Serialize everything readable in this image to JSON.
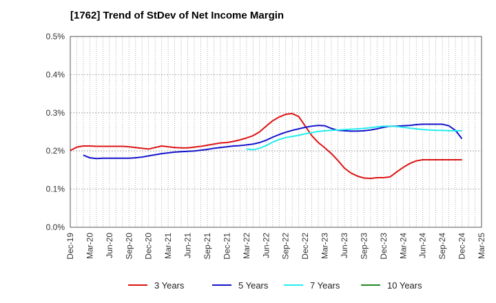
{
  "chart_data": {
    "type": "line",
    "title": "[1762]  Trend of StDev of Net Income Margin",
    "xlabel": "",
    "ylabel": "",
    "x_ticks": [
      "Dec-19",
      "Mar-20",
      "Jun-20",
      "Sep-20",
      "Dec-20",
      "Mar-21",
      "Jun-21",
      "Sep-21",
      "Dec-21",
      "Mar-22",
      "Jun-22",
      "Sep-22",
      "Dec-22",
      "Mar-23",
      "Jun-23",
      "Sep-23",
      "Dec-23",
      "Mar-24",
      "Jun-24",
      "Sep-24",
      "Dec-24",
      "Mar-25"
    ],
    "y_ticks": [
      "0.0%",
      "0.1%",
      "0.2%",
      "0.3%",
      "0.4%",
      "0.5%"
    ],
    "ylim": [
      0,
      0.5
    ],
    "grid": "dotted",
    "legend_position": "bottom",
    "series": [
      {
        "name": "3 Years",
        "color": "#dd1111",
        "x": [
          "2019-12",
          "2020-01",
          "2020-02",
          "2020-03",
          "2020-04",
          "2020-05",
          "2020-06",
          "2020-07",
          "2020-08",
          "2020-09",
          "2020-10",
          "2020-11",
          "2020-12",
          "2021-01",
          "2021-02",
          "2021-03",
          "2021-04",
          "2021-05",
          "2021-06",
          "2021-07",
          "2021-08",
          "2021-09",
          "2021-10",
          "2021-11",
          "2021-12",
          "2022-01",
          "2022-02",
          "2022-03",
          "2022-04",
          "2022-05",
          "2022-06",
          "2022-07",
          "2022-08",
          "2022-09",
          "2022-10",
          "2022-11",
          "2022-12",
          "2023-01",
          "2023-02",
          "2023-03",
          "2023-04",
          "2023-05",
          "2023-06",
          "2023-07",
          "2023-08",
          "2023-09",
          "2023-10",
          "2023-11",
          "2023-12",
          "2024-01",
          "2024-02",
          "2024-03",
          "2024-04",
          "2024-05",
          "2024-06",
          "2024-07",
          "2024-08",
          "2024-09",
          "2024-10",
          "2024-11",
          "2024-12"
        ],
        "values": [
          0.201,
          0.21,
          0.213,
          0.213,
          0.212,
          0.212,
          0.212,
          0.212,
          0.212,
          0.211,
          0.209,
          0.207,
          0.205,
          0.209,
          0.213,
          0.211,
          0.209,
          0.208,
          0.208,
          0.21,
          0.212,
          0.215,
          0.218,
          0.221,
          0.222,
          0.225,
          0.229,
          0.234,
          0.24,
          0.25,
          0.265,
          0.279,
          0.289,
          0.296,
          0.298,
          0.29,
          0.265,
          0.24,
          0.222,
          0.208,
          0.193,
          0.175,
          0.155,
          0.142,
          0.134,
          0.129,
          0.128,
          0.13,
          0.13,
          0.132,
          0.145,
          0.157,
          0.167,
          0.174,
          0.177,
          0.177,
          0.177,
          0.177,
          0.177,
          0.177,
          0.177
        ]
      },
      {
        "name": "5 Years",
        "color": "#1111cc",
        "x": [
          "2020-02",
          "2020-03",
          "2020-04",
          "2020-05",
          "2020-06",
          "2020-07",
          "2020-08",
          "2020-09",
          "2020-10",
          "2020-11",
          "2020-12",
          "2021-01",
          "2021-02",
          "2021-03",
          "2021-04",
          "2021-05",
          "2021-06",
          "2021-07",
          "2021-08",
          "2021-09",
          "2021-10",
          "2021-11",
          "2021-12",
          "2022-01",
          "2022-02",
          "2022-03",
          "2022-04",
          "2022-05",
          "2022-06",
          "2022-07",
          "2022-08",
          "2022-09",
          "2022-10",
          "2022-11",
          "2022-12",
          "2023-01",
          "2023-02",
          "2023-03",
          "2023-04",
          "2023-05",
          "2023-06",
          "2023-07",
          "2023-08",
          "2023-09",
          "2023-10",
          "2023-11",
          "2023-12",
          "2024-01",
          "2024-02",
          "2024-03",
          "2024-04",
          "2024-05",
          "2024-06",
          "2024-07",
          "2024-08",
          "2024-09",
          "2024-10",
          "2024-11",
          "2024-12"
        ],
        "values": [
          0.189,
          0.182,
          0.18,
          0.181,
          0.181,
          0.181,
          0.181,
          0.181,
          0.182,
          0.184,
          0.187,
          0.19,
          0.193,
          0.195,
          0.197,
          0.198,
          0.199,
          0.2,
          0.202,
          0.204,
          0.207,
          0.209,
          0.211,
          0.213,
          0.214,
          0.216,
          0.218,
          0.222,
          0.228,
          0.236,
          0.243,
          0.249,
          0.254,
          0.258,
          0.262,
          0.265,
          0.267,
          0.266,
          0.259,
          0.254,
          0.253,
          0.252,
          0.252,
          0.253,
          0.255,
          0.258,
          0.262,
          0.265,
          0.265,
          0.266,
          0.267,
          0.269,
          0.27,
          0.27,
          0.27,
          0.27,
          0.266,
          0.254,
          0.232
        ]
      },
      {
        "name": "7 Years",
        "color": "#22eeee",
        "x": [
          "2022-03",
          "2022-04",
          "2022-05",
          "2022-06",
          "2022-07",
          "2022-08",
          "2022-09",
          "2022-10",
          "2022-11",
          "2022-12",
          "2023-01",
          "2023-02",
          "2023-03",
          "2023-04",
          "2023-05",
          "2023-06",
          "2023-07",
          "2023-08",
          "2023-09",
          "2023-10",
          "2023-11",
          "2023-12",
          "2024-01",
          "2024-02",
          "2024-03",
          "2024-04",
          "2024-05",
          "2024-06",
          "2024-07",
          "2024-08",
          "2024-09",
          "2024-10",
          "2024-11",
          "2024-12"
        ],
        "values": [
          0.205,
          0.203,
          0.207,
          0.214,
          0.223,
          0.23,
          0.235,
          0.238,
          0.241,
          0.245,
          0.248,
          0.251,
          0.253,
          0.254,
          0.255,
          0.256,
          0.257,
          0.258,
          0.259,
          0.261,
          0.263,
          0.265,
          0.265,
          0.264,
          0.262,
          0.26,
          0.258,
          0.256,
          0.255,
          0.254,
          0.254,
          0.253,
          0.253,
          0.253
        ]
      },
      {
        "name": "10 Years",
        "color": "#228822",
        "x": [],
        "values": []
      }
    ]
  }
}
